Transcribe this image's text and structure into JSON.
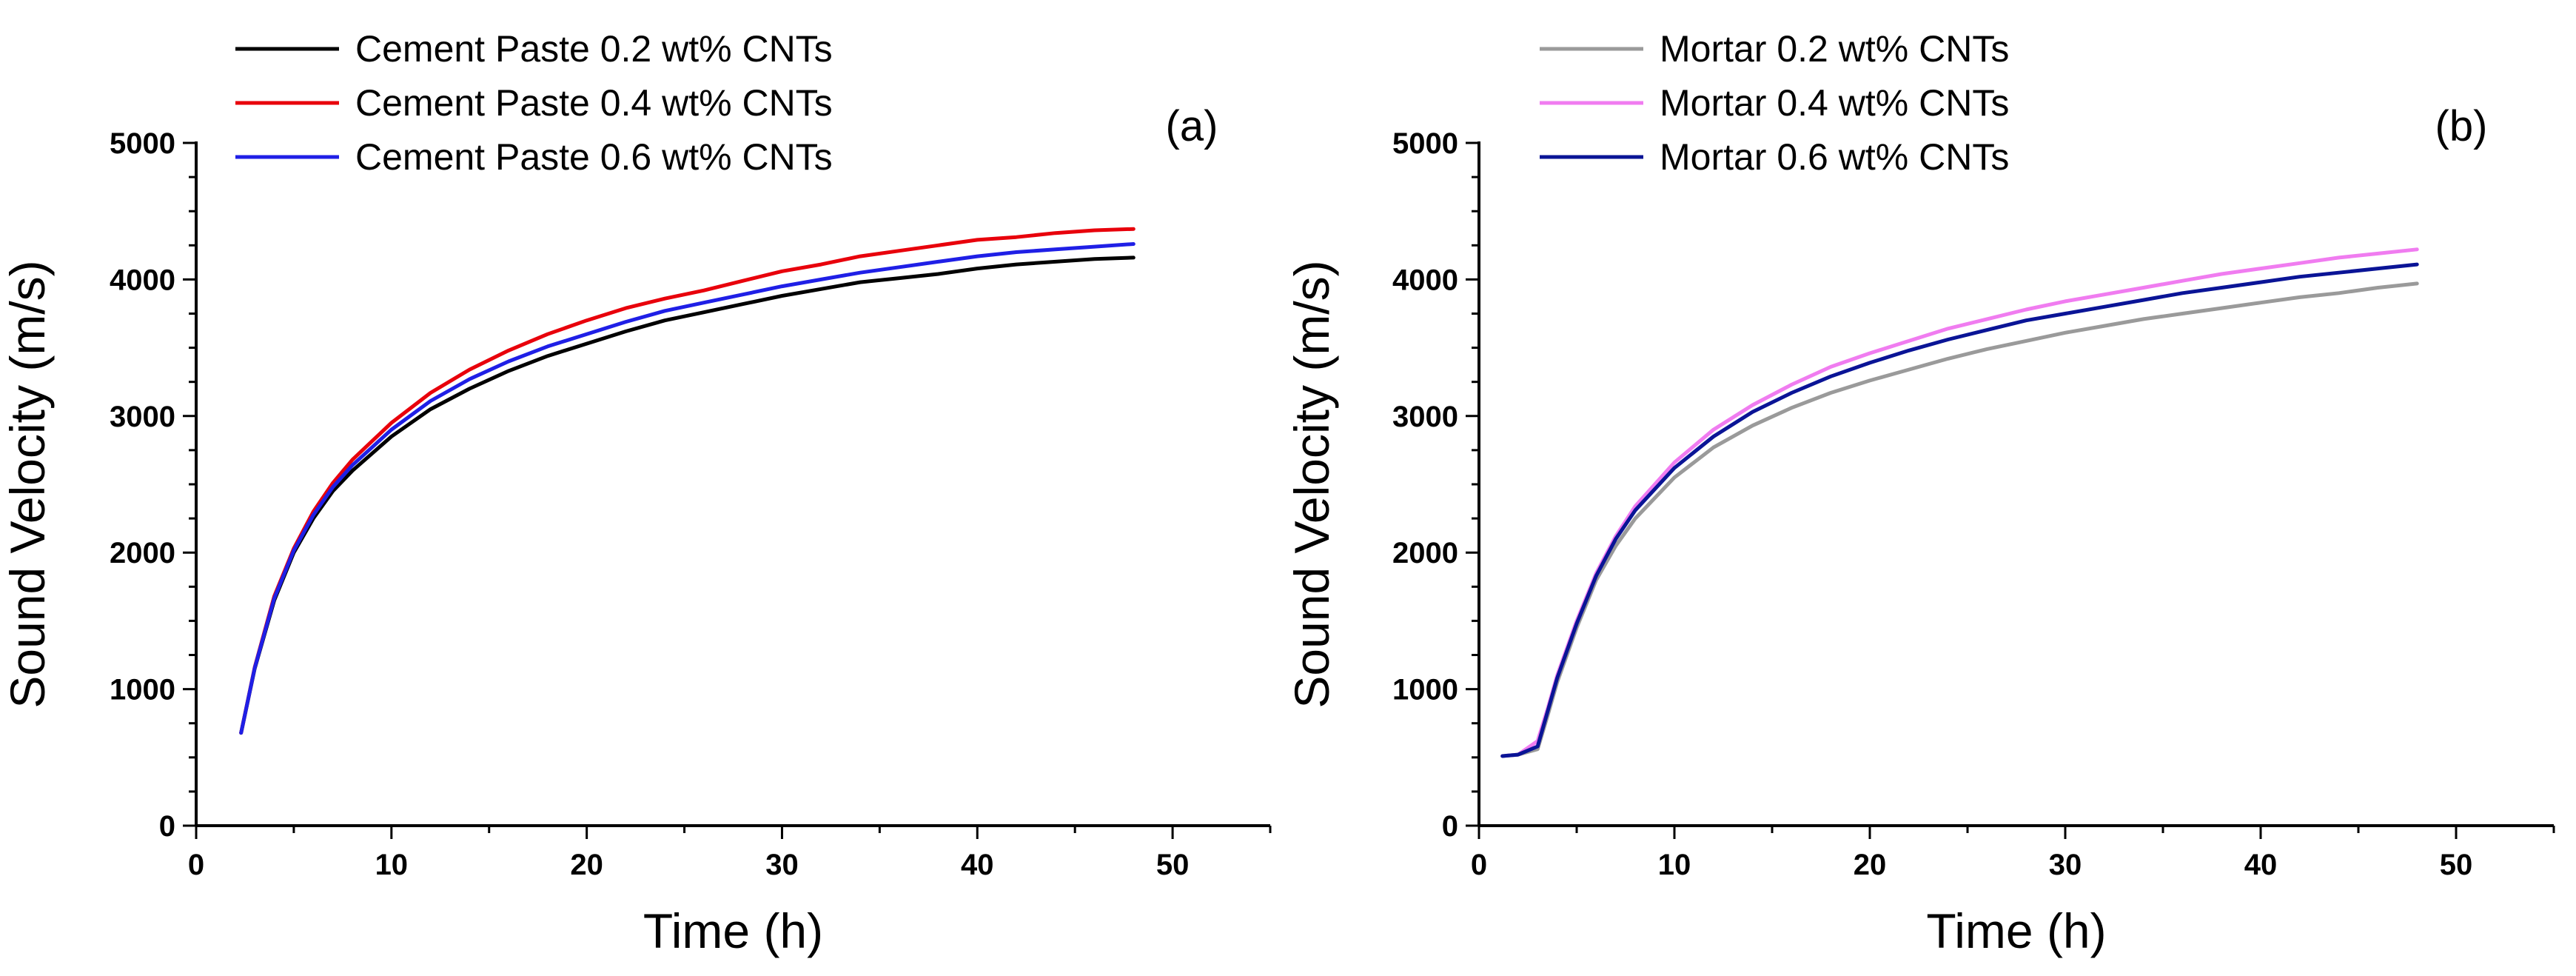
{
  "chart_data": [
    {
      "type": "line",
      "panel_label": "(a)",
      "xlabel": "Time (h)",
      "ylabel": "Sound Velocity (m/s)",
      "xlim": [
        0,
        55
      ],
      "ylim": [
        0,
        5000
      ],
      "x_ticks": [
        0,
        10,
        20,
        30,
        40,
        50
      ],
      "y_ticks": [
        0,
        1000,
        2000,
        3000,
        4000,
        5000
      ],
      "legend_position": "top-left",
      "x": [
        2.3,
        3,
        4,
        5,
        6,
        7,
        8,
        10,
        12,
        14,
        16,
        18,
        20,
        22,
        24,
        26,
        28,
        30,
        32,
        34,
        36,
        38,
        40,
        42,
        44,
        46,
        48
      ],
      "series": [
        {
          "name": "Cement Paste 0.2 wt% CNTs",
          "color": "#000000",
          "values": [
            680,
            1150,
            1650,
            2000,
            2250,
            2450,
            2600,
            2850,
            3050,
            3200,
            3330,
            3440,
            3530,
            3620,
            3700,
            3760,
            3820,
            3880,
            3930,
            3980,
            4010,
            4040,
            4080,
            4110,
            4130,
            4150,
            4160
          ]
        },
        {
          "name": "Cement Paste 0.4 wt% CNTs",
          "color": "#e8000b",
          "values": [
            680,
            1160,
            1680,
            2030,
            2300,
            2510,
            2680,
            2950,
            3170,
            3340,
            3480,
            3600,
            3700,
            3790,
            3860,
            3920,
            3990,
            4060,
            4110,
            4170,
            4210,
            4250,
            4290,
            4310,
            4340,
            4360,
            4370
          ]
        },
        {
          "name": "Cement Paste 0.6 wt% CNTs",
          "color": "#1f1fe6",
          "values": [
            680,
            1155,
            1665,
            2015,
            2275,
            2480,
            2640,
            2900,
            3110,
            3270,
            3400,
            3510,
            3600,
            3690,
            3770,
            3830,
            3890,
            3950,
            4000,
            4050,
            4090,
            4130,
            4170,
            4200,
            4220,
            4240,
            4260
          ]
        }
      ]
    },
    {
      "type": "line",
      "panel_label": "(b)",
      "xlabel": "Time (h)",
      "ylabel": "Sound Velocity (m/s)",
      "xlim": [
        0,
        55
      ],
      "ylim": [
        0,
        5000
      ],
      "x_ticks": [
        0,
        10,
        20,
        30,
        40,
        50
      ],
      "y_ticks": [
        0,
        1000,
        2000,
        3000,
        4000,
        5000
      ],
      "legend_position": "top-left",
      "x": [
        1.2,
        2,
        3,
        3.5,
        4,
        5,
        6,
        7,
        8,
        10,
        12,
        14,
        16,
        18,
        20,
        22,
        24,
        26,
        28,
        30,
        32,
        34,
        36,
        38,
        40,
        42,
        44,
        46,
        48
      ],
      "series": [
        {
          "name": "Mortar 0.2 wt% CNTs",
          "color": "#9a9a9a",
          "values": [
            510,
            520,
            560,
            800,
            1050,
            1450,
            1800,
            2050,
            2250,
            2550,
            2770,
            2930,
            3060,
            3170,
            3260,
            3340,
            3420,
            3490,
            3550,
            3610,
            3660,
            3710,
            3750,
            3790,
            3830,
            3870,
            3900,
            3940,
            3970
          ]
        },
        {
          "name": "Mortar 0.4 wt% CNTs",
          "color": "#f07cf0",
          "values": [
            510,
            520,
            620,
            850,
            1100,
            1500,
            1850,
            2120,
            2340,
            2660,
            2900,
            3080,
            3230,
            3360,
            3460,
            3550,
            3640,
            3710,
            3780,
            3840,
            3890,
            3940,
            3990,
            4040,
            4080,
            4120,
            4160,
            4190,
            4220
          ]
        },
        {
          "name": "Mortar 0.6 wt% CNTs",
          "color": "#0a1496",
          "values": [
            510,
            520,
            580,
            830,
            1080,
            1480,
            1830,
            2100,
            2310,
            2620,
            2850,
            3030,
            3170,
            3290,
            3390,
            3480,
            3560,
            3630,
            3700,
            3750,
            3800,
            3850,
            3900,
            3940,
            3980,
            4020,
            4050,
            4080,
            4110
          ]
        }
      ]
    }
  ]
}
